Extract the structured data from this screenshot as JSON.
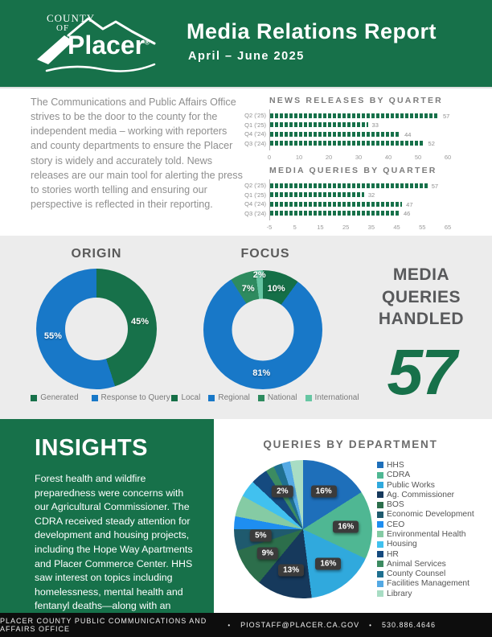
{
  "header": {
    "logo": {
      "county": "COUNTY",
      "of": "OF",
      "name": "Placer",
      "registered": "®"
    },
    "title": "Media Relations Report",
    "subtitle": "April – June 2025"
  },
  "intro": {
    "text": "The Communications and Public Affairs Office strives to be the door to the county for the independent media – working with reporters and county departments to ensure the Placer story is widely and accurately told. News releases are our main tool for alerting the press to stories worth telling and ensuring our perspective is reflected in their reporting."
  },
  "queries_handled": {
    "lines": [
      "MEDIA",
      "QUERIES",
      "HANDLED"
    ],
    "value": "57"
  },
  "insights": {
    "title": "INSIGHTS",
    "body": "Forest health and wildfire preparedness were concerns with our Agricultural Commissioner. The CDRA received steady attention for development and housing projects, including the Hope Way Apartments and Placer Commerce Center. HHS saw interest on topics including homelessness, mental health and fentanyl deaths—along with an international inquiry from a German journalist about a local rehab facility."
  },
  "footer": {
    "parts": [
      "PLACER COUNTY PUBLIC COMMUNICATIONS AND AFFAIRS OFFICE",
      "PIOSTAFF@PLACER.CA.GOV",
      "530.886.4646"
    ],
    "separator": "•"
  },
  "colors": {
    "brand_green": "#17714A",
    "brand_blue": "#1878C8",
    "band_gray": "#ECECEC",
    "footer_black": "#0D0D0D"
  },
  "chart_data": [
    {
      "id": "news_releases",
      "type": "bar",
      "orientation": "horizontal",
      "title": "NEWS RELEASES BY QUARTER",
      "categories": [
        "Q2 ('25)",
        "Q1 ('25)",
        "Q4 ('24)",
        "Q3 ('24)"
      ],
      "values": [
        57,
        33,
        44,
        52
      ],
      "xlim": [
        0,
        60
      ],
      "ticks": [
        0,
        10,
        20,
        30,
        40,
        50,
        60
      ],
      "bar_color": "#17714A",
      "grid": false
    },
    {
      "id": "media_queries",
      "type": "bar",
      "orientation": "horizontal",
      "title": "MEDIA QUERIES BY QUARTER",
      "categories": [
        "Q2 ('25)",
        "Q1 ('25)",
        "Q4 ('24)",
        "Q3 ('24)"
      ],
      "values": [
        57,
        32,
        47,
        46
      ],
      "xlim": [
        -5,
        65
      ],
      "ticks": [
        -5,
        5,
        15,
        25,
        35,
        45,
        55,
        65
      ],
      "bar_color": "#17714A",
      "grid": false
    },
    {
      "id": "origin",
      "type": "pie",
      "donut": true,
      "title": "ORIGIN",
      "hole_color": "#ECECEC",
      "label_r": 0.73,
      "legend_position": "bottom",
      "slices": [
        {
          "label": "Generated",
          "value": 45,
          "color": "#17714A",
          "labeled": true
        },
        {
          "label": "Response to Query",
          "value": 55,
          "color": "#1878C8",
          "labeled": true
        }
      ]
    },
    {
      "id": "focus",
      "type": "pie",
      "donut": true,
      "title": "FOCUS",
      "hole_color": "#ECECEC",
      "label_r": 0.73,
      "legend_position": "bottom",
      "slices": [
        {
          "label": "Local",
          "value": 10,
          "color": "#156F47",
          "labeled": true
        },
        {
          "label": "Regional",
          "value": 81,
          "color": "#1878C8",
          "labeled": true
        },
        {
          "label": "National",
          "value": 7,
          "color": "#2E8B5F",
          "labeled": true
        },
        {
          "label": "International",
          "value": 2,
          "color": "#66C6A3",
          "labeled": true,
          "label_r": 0.92
        }
      ]
    },
    {
      "id": "departments",
      "type": "pie",
      "donut": false,
      "title": "QUERIES BY DEPARTMENT",
      "label_style": "chip",
      "label_r": 0.62,
      "legend_position": "right",
      "slices": [
        {
          "label": "HHS",
          "value": 16,
          "color": "#1E6FBA",
          "labeled": true
        },
        {
          "label": "CDRA",
          "value": 16,
          "color": "#4FB793",
          "labeled": true
        },
        {
          "label": "Public Works",
          "value": 16,
          "color": "#30A9DD",
          "labeled": true
        },
        {
          "label": "Ag. Commissioner",
          "value": 13,
          "color": "#16395C",
          "labeled": true
        },
        {
          "label": "BOS",
          "value": 9,
          "color": "#2C6E4B",
          "labeled": true
        },
        {
          "label": "Economic Development",
          "value": 5,
          "color": "#1F5A6E",
          "labeled": true
        },
        {
          "label": "CEO",
          "value": 3,
          "color": "#1E8EF0",
          "labeled": false
        },
        {
          "label": "Environmental Health",
          "value": 5,
          "color": "#85CBA4",
          "labeled": false
        },
        {
          "label": "Housing",
          "value": 4,
          "color": "#41C1EF",
          "labeled": false
        },
        {
          "label": "HR",
          "value": 4,
          "color": "#154A7F",
          "labeled": false
        },
        {
          "label": "Animal Services",
          "value": 2,
          "color": "#3C8B61",
          "labeled": true
        },
        {
          "label": "County Counsel",
          "value": 2,
          "color": "#1F7090",
          "labeled": false
        },
        {
          "label": "Facilities Management",
          "value": 2,
          "color": "#54A9E4",
          "labeled": false
        },
        {
          "label": "Library",
          "value": 3,
          "color": "#A8DDC4",
          "labeled": false
        }
      ]
    }
  ]
}
